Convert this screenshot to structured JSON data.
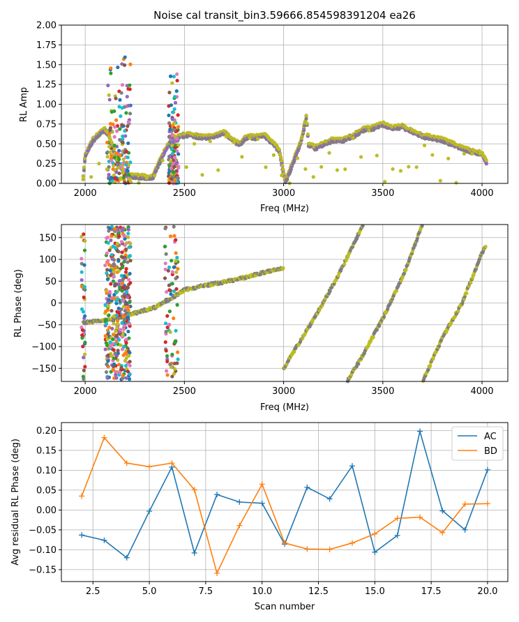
{
  "figure": {
    "title": "Noise cal transit_bin3.59666.854598391204 ea26"
  },
  "chart_data": [
    {
      "type": "scatter",
      "title": "Noise cal transit_bin3.59666.854598391204 ea26",
      "xlabel": "Freq (MHz)",
      "ylabel": "RL Amp",
      "xlim": [
        1880,
        4130
      ],
      "ylim": [
        0,
        2
      ],
      "xticks": [
        2000,
        2500,
        3000,
        3500,
        4000
      ],
      "yticks": [
        0.0,
        0.25,
        0.5,
        0.75,
        1.0,
        1.25,
        1.5,
        1.75,
        2.0
      ],
      "ytick_labels": [
        "0.00",
        "0.25",
        "0.50",
        "0.75",
        "1.00",
        "1.25",
        "1.50",
        "1.75",
        "2.00"
      ],
      "grid": true,
      "colors": [
        "#1f77b4",
        "#ff7f0e",
        "#2ca02c",
        "#d62728",
        "#9467bd",
        "#8c564b",
        "#e377c2",
        "#7f7f7f",
        "#bcbd22",
        "#17becf"
      ],
      "envelope": [
        [
          1990,
          0.08
        ],
        [
          2000,
          0.35
        ],
        [
          2020,
          0.45
        ],
        [
          2040,
          0.55
        ],
        [
          2060,
          0.6
        ],
        [
          2080,
          0.65
        ],
        [
          2100,
          0.68
        ],
        [
          2120,
          0.6
        ],
        [
          2140,
          0.45
        ],
        [
          2160,
          0.3
        ],
        [
          2180,
          0.2
        ],
        [
          2200,
          0.12
        ],
        [
          2220,
          0.1
        ],
        [
          2260,
          0.09
        ],
        [
          2300,
          0.08
        ],
        [
          2340,
          0.07
        ],
        [
          2380,
          0.3
        ],
        [
          2420,
          0.5
        ],
        [
          2450,
          0.55
        ],
        [
          2480,
          0.6
        ],
        [
          2520,
          0.62
        ],
        [
          2560,
          0.6
        ],
        [
          2600,
          0.58
        ],
        [
          2650,
          0.6
        ],
        [
          2700,
          0.65
        ],
        [
          2740,
          0.55
        ],
        [
          2780,
          0.5
        ],
        [
          2820,
          0.6
        ],
        [
          2860,
          0.58
        ],
        [
          2900,
          0.62
        ],
        [
          2950,
          0.5
        ],
        [
          2980,
          0.4
        ],
        [
          3000,
          0.12
        ],
        [
          3010,
          0.03
        ],
        [
          3030,
          0.15
        ],
        [
          3060,
          0.35
        ],
        [
          3090,
          0.55
        ],
        [
          3115,
          0.85
        ],
        [
          3125,
          0.5
        ],
        [
          3160,
          0.45
        ],
        [
          3200,
          0.5
        ],
        [
          3250,
          0.55
        ],
        [
          3300,
          0.55
        ],
        [
          3350,
          0.6
        ],
        [
          3400,
          0.68
        ],
        [
          3450,
          0.7
        ],
        [
          3500,
          0.75
        ],
        [
          3550,
          0.7
        ],
        [
          3600,
          0.72
        ],
        [
          3650,
          0.65
        ],
        [
          3700,
          0.6
        ],
        [
          3750,
          0.58
        ],
        [
          3800,
          0.55
        ],
        [
          3850,
          0.5
        ],
        [
          3900,
          0.45
        ],
        [
          3950,
          0.4
        ],
        [
          4000,
          0.38
        ],
        [
          4025,
          0.25
        ]
      ]
    },
    {
      "type": "scatter",
      "xlabel": "Freq (MHz)",
      "ylabel": "RL Phase (deg)",
      "xlim": [
        1880,
        4130
      ],
      "ylim": [
        -180,
        180
      ],
      "xticks": [
        2000,
        2500,
        3000,
        3500,
        4000
      ],
      "yticks": [
        -150,
        -100,
        -50,
        0,
        50,
        100,
        150
      ],
      "ytick_labels": [
        "−150",
        "−100",
        "−50",
        "0",
        "50",
        "100",
        "150"
      ],
      "grid": true,
      "segments": [
        {
          "x": [
            1990,
            2100,
            2200,
            2350,
            2450,
            2500,
            2600,
            2700,
            2800,
            2900,
            3000
          ],
          "y": [
            -45,
            -40,
            -30,
            -10,
            15,
            30,
            40,
            48,
            58,
            70,
            80
          ]
        },
        {
          "x": [
            3000,
            3100,
            3200,
            3300,
            3400
          ],
          "y": [
            -150,
            -75,
            0,
            85,
            180
          ]
        },
        {
          "x": [
            3320,
            3400,
            3500,
            3600,
            3700
          ],
          "y": [
            -180,
            -120,
            -35,
            60,
            180
          ]
        },
        {
          "x": [
            3700,
            3800,
            3900,
            4000,
            4020
          ],
          "y": [
            -180,
            -80,
            0,
            115,
            130
          ]
        }
      ]
    },
    {
      "type": "line",
      "xlabel": "Scan number",
      "ylabel": "Avg residual RL Phase (deg)",
      "xlim": [
        1.1,
        20.9
      ],
      "ylim": [
        -0.18,
        0.22
      ],
      "xticks": [
        2.5,
        5.0,
        7.5,
        10.0,
        12.5,
        15.0,
        17.5,
        20.0
      ],
      "xtick_labels": [
        "2.5",
        "5.0",
        "7.5",
        "10.0",
        "12.5",
        "15.0",
        "17.5",
        "20.0"
      ],
      "yticks": [
        -0.15,
        -0.1,
        -0.05,
        0.0,
        0.05,
        0.1,
        0.15,
        0.2
      ],
      "ytick_labels": [
        "−0.15",
        "−0.10",
        "−0.05",
        "0.00",
        "0.05",
        "0.10",
        "0.15",
        "0.20"
      ],
      "grid": true,
      "legend": "top-right",
      "x": [
        2,
        3,
        4,
        5,
        6,
        7,
        8,
        9,
        10,
        11,
        12,
        13,
        14,
        15,
        16,
        17,
        18,
        19,
        20
      ],
      "series": [
        {
          "name": "AC",
          "color": "#1f77b4",
          "values": [
            -0.063,
            -0.076,
            -0.12,
            -0.003,
            0.108,
            -0.108,
            0.039,
            0.02,
            0.017,
            -0.086,
            0.057,
            0.028,
            0.111,
            -0.106,
            -0.064,
            0.198,
            -0.002,
            -0.05,
            0.101
          ]
        },
        {
          "name": "BD",
          "color": "#ff7f0e",
          "values": [
            0.035,
            0.182,
            0.118,
            0.109,
            0.118,
            0.051,
            -0.159,
            -0.039,
            0.065,
            -0.083,
            -0.098,
            -0.099,
            -0.083,
            -0.06,
            -0.021,
            -0.018,
            -0.057,
            0.015,
            0.016
          ]
        }
      ]
    }
  ]
}
